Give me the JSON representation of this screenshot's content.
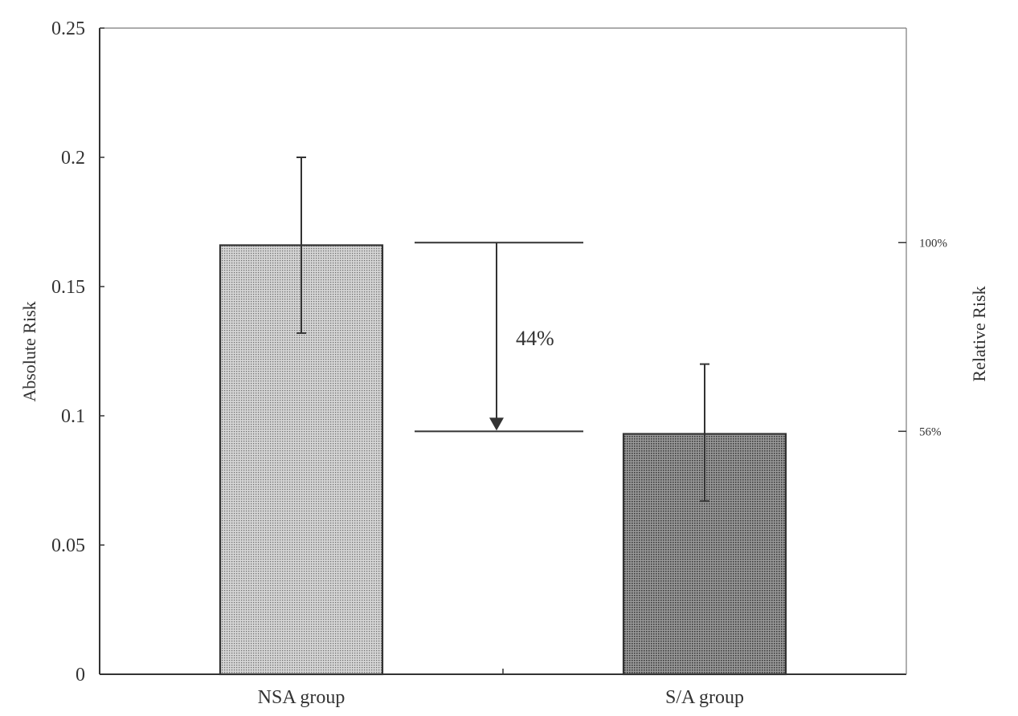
{
  "chart_data": {
    "type": "bar",
    "categories": [
      "NSA group",
      "S/A group"
    ],
    "values": [
      0.166,
      0.093
    ],
    "error_bars": [
      {
        "low": 0.132,
        "high": 0.2
      },
      {
        "low": 0.067,
        "high": 0.12
      }
    ],
    "ylabel": "Absolute Risk",
    "ylim": [
      0,
      0.25
    ],
    "yticks": [
      {
        "value": 0,
        "label": "0"
      },
      {
        "value": 0.05,
        "label": "0.05"
      },
      {
        "value": 0.1,
        "label": "0.1"
      },
      {
        "value": 0.15,
        "label": "0.15"
      },
      {
        "value": 0.2,
        "label": "0.2"
      },
      {
        "value": 0.25,
        "label": "0.25"
      }
    ],
    "secondary_ylabel": "Relative Risk",
    "secondary_ticks": [
      {
        "value": 0.167,
        "label": "100%"
      },
      {
        "value": 0.094,
        "label": "56%"
      }
    ],
    "annotation": {
      "label": "44%",
      "from": 0.167,
      "to": 0.094
    },
    "bar_fill_colors": [
      "#bdbdbd",
      "#8c8c8c"
    ],
    "grid": false
  }
}
